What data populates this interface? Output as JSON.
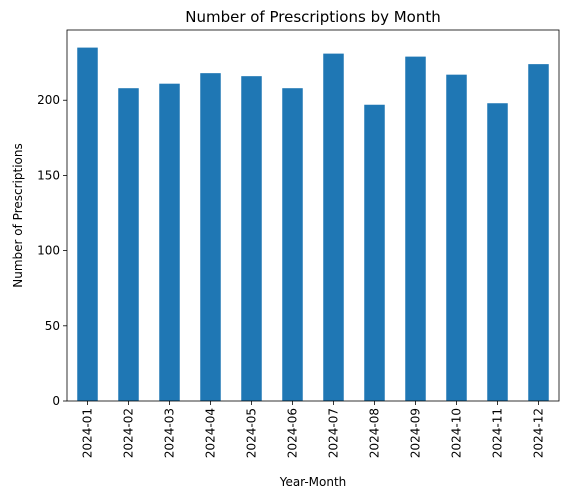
{
  "colors": {
    "bar": "#1f77b4",
    "axis": "#000000",
    "background": "#ffffff"
  },
  "chart_data": {
    "type": "bar",
    "title": "Number of Prescriptions by Month",
    "xlabel": "Year-Month",
    "ylabel": "Number of Prescriptions",
    "categories": [
      "2024-01",
      "2024-02",
      "2024-03",
      "2024-04",
      "2024-05",
      "2024-06",
      "2024-07",
      "2024-08",
      "2024-09",
      "2024-10",
      "2024-11",
      "2024-12"
    ],
    "values": [
      235,
      208,
      211,
      218,
      216,
      208,
      231,
      197,
      229,
      217,
      198,
      224
    ],
    "ylim": [
      0,
      246.7
    ],
    "yticks": [
      0,
      50,
      100,
      150,
      200
    ],
    "grid": false,
    "legend": "none"
  }
}
